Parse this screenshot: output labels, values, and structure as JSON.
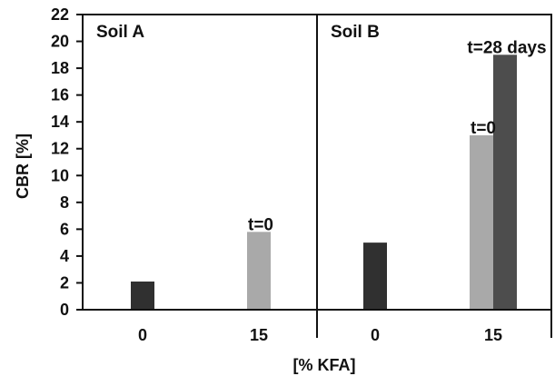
{
  "chart_data": {
    "type": "bar",
    "xlabel": "[% KFA]",
    "ylabel": "CBR [%]",
    "ylim": [
      0,
      22
    ],
    "y_ticks": [
      "0",
      "2",
      "4",
      "6",
      "8",
      "10",
      "12",
      "14",
      "16",
      "18",
      "20",
      "22"
    ],
    "grid": false,
    "panels": [
      {
        "name": "Soil A",
        "groups": [
          {
            "category": "0",
            "bars": [
              {
                "value": 2.1,
                "shade": "dark"
              }
            ]
          },
          {
            "category": "15",
            "bars": [
              {
                "value": 5.8,
                "shade": "light",
                "label": "t=0"
              }
            ]
          }
        ]
      },
      {
        "name": "Soil B",
        "groups": [
          {
            "category": "0",
            "bars": [
              {
                "value": 5.0,
                "shade": "dark"
              }
            ]
          },
          {
            "category": "15",
            "bars": [
              {
                "value": 13.0,
                "shade": "light",
                "label": "t=0"
              },
              {
                "value": 19.0,
                "shade": "medium",
                "label": "t=28 days"
              }
            ]
          }
        ]
      }
    ]
  },
  "colors": {
    "dark": "#303030",
    "light": "#a9a9a9",
    "medium": "#4d4d4d",
    "frame": "#111111"
  }
}
